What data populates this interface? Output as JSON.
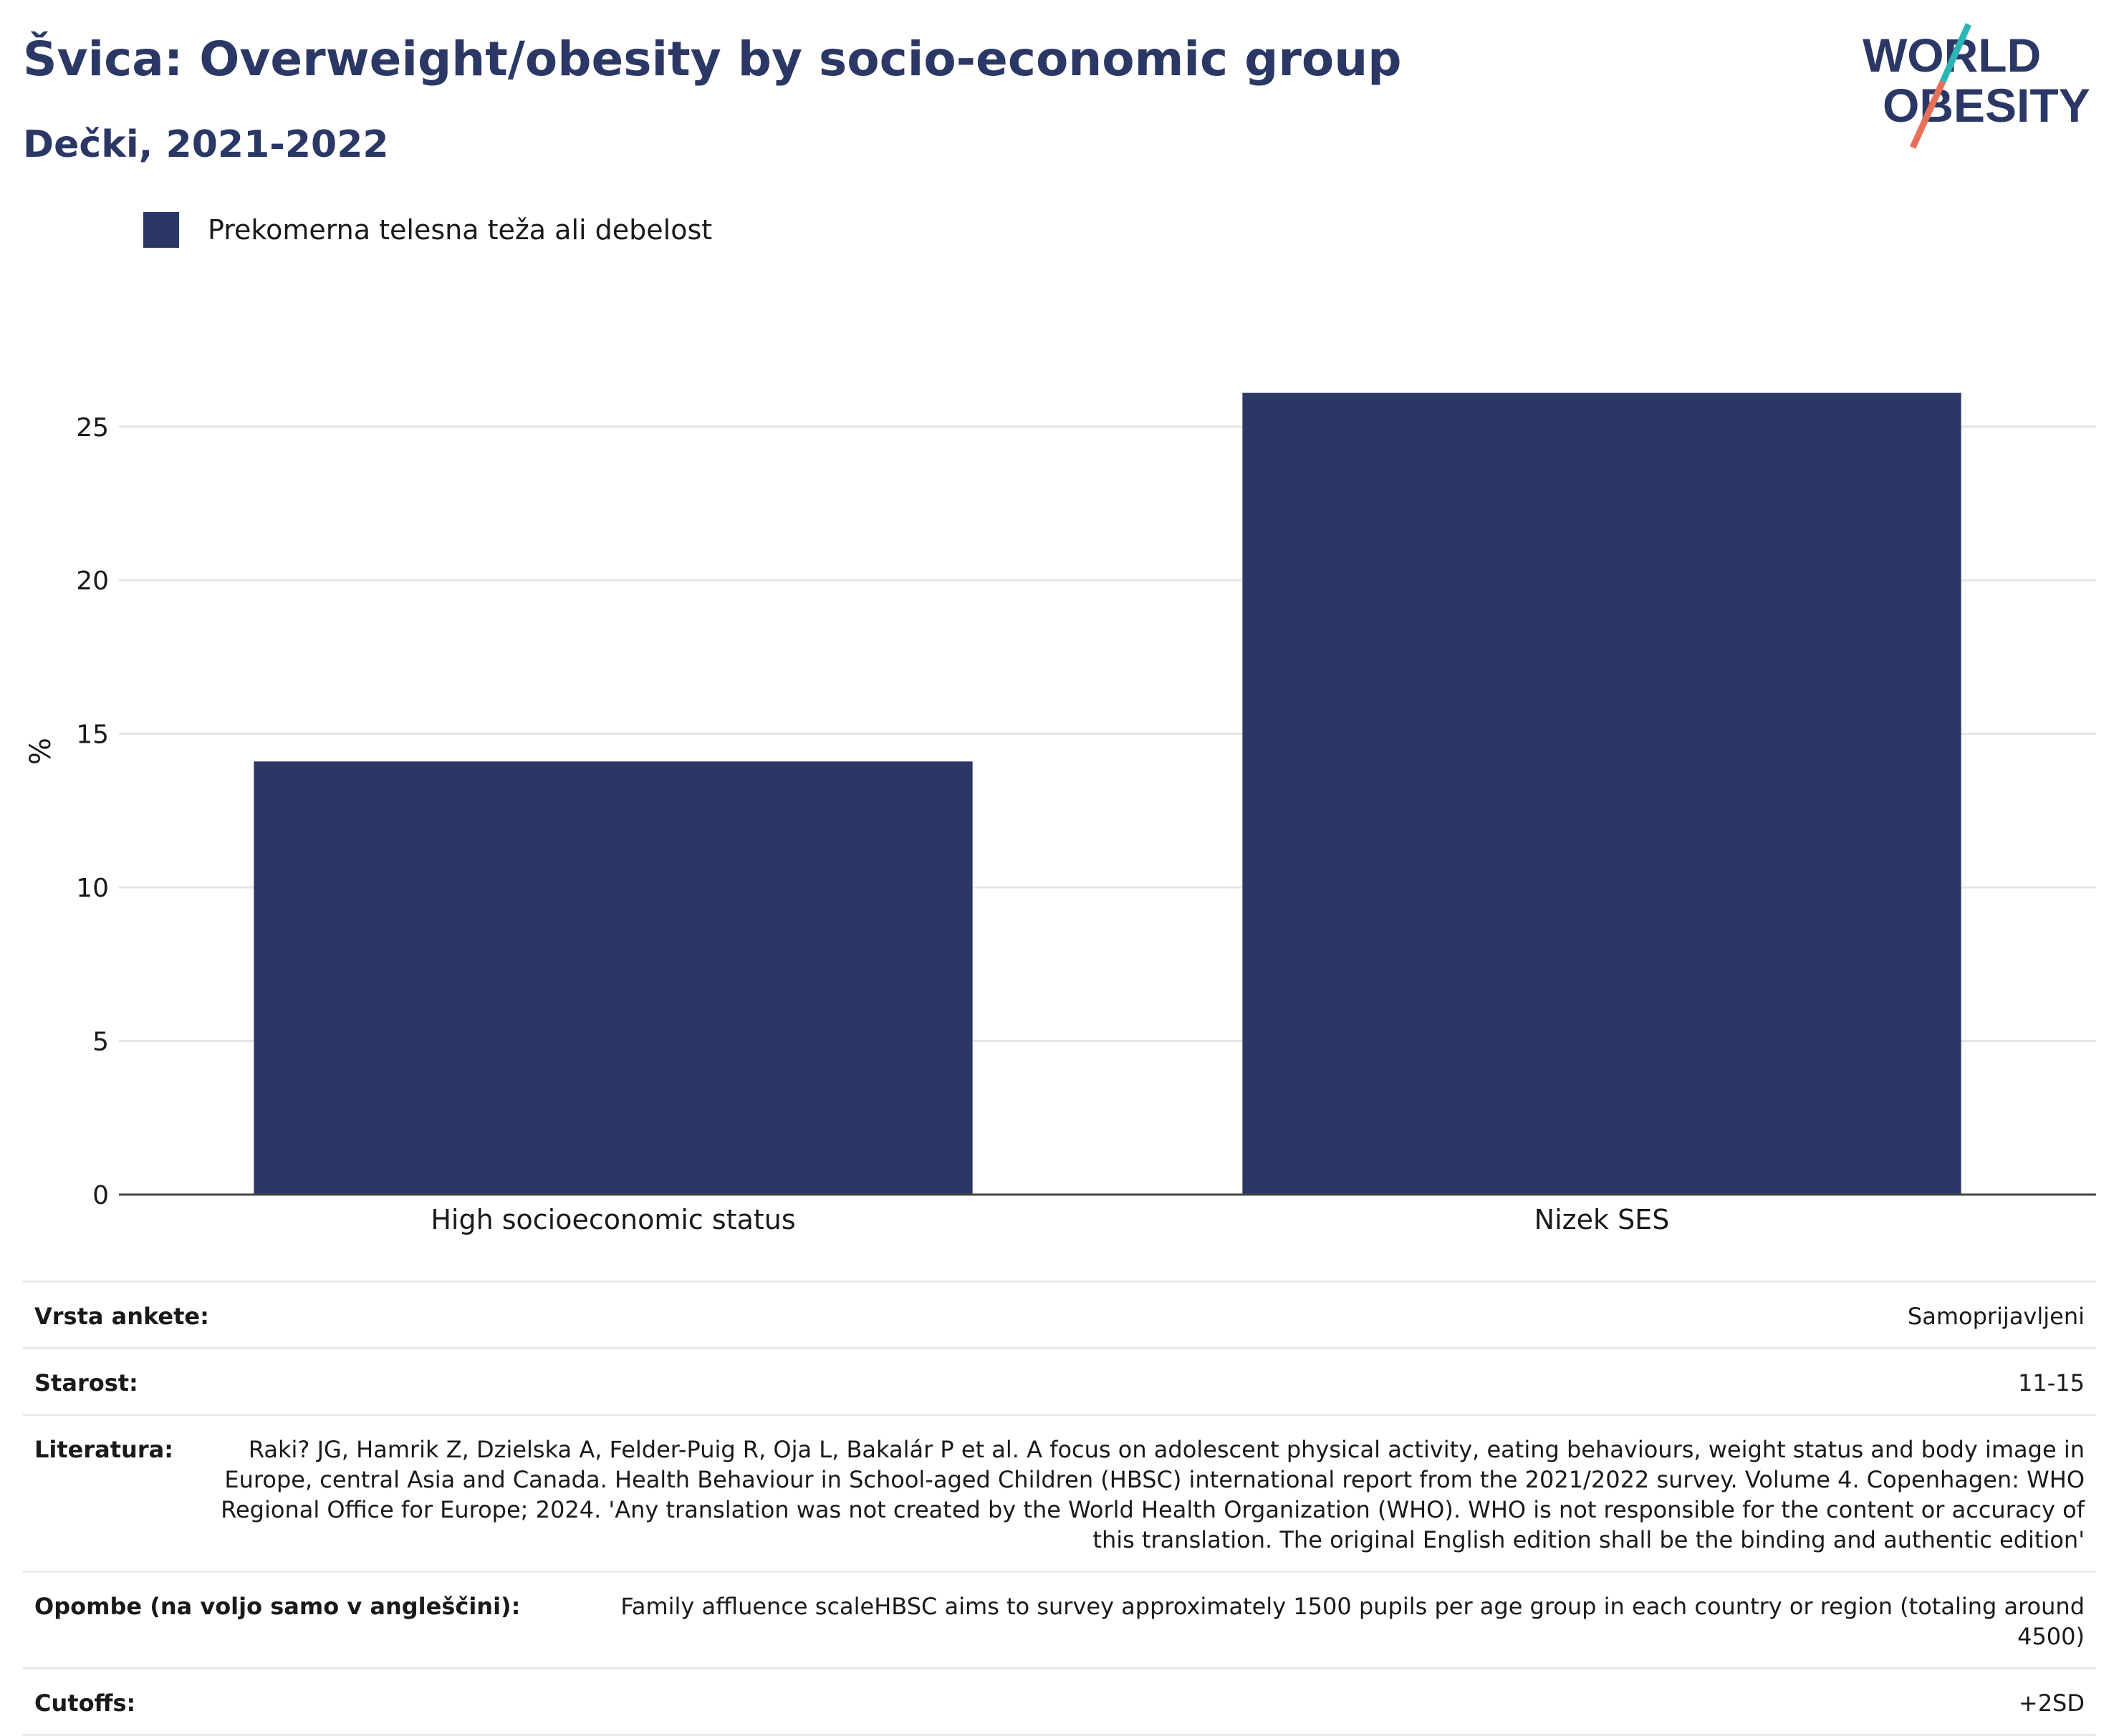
{
  "header": {
    "title": "Švica: Overweight/obesity by socio-economic group",
    "subtitle": "Dečki, 2021-2022"
  },
  "logo": {
    "line1": "WORLD",
    "line2": "OBESITY"
  },
  "colors": {
    "bar": "#2b3765",
    "title": "#2b3765",
    "logo_teal": "#2bb5b5",
    "logo_coral": "#e8705a"
  },
  "chart_data": {
    "type": "bar",
    "categories": [
      "High socioeconomic status",
      "Nizek SES"
    ],
    "series": [
      {
        "name": "Prekomerna telesna teža ali debelost",
        "values": [
          14.1,
          26.1
        ]
      }
    ],
    "ylabel": "%",
    "ylim": [
      0,
      27
    ],
    "yticks": [
      0,
      5,
      10,
      15,
      20,
      25
    ],
    "grid": true,
    "legend_position": "top-left"
  },
  "info": [
    {
      "label": "Vrsta ankete:",
      "value": "Samoprijavljeni"
    },
    {
      "label": "Starost:",
      "value": "11-15"
    },
    {
      "label": "Literatura:",
      "value": "Raki? JG, Hamrik Z, Dzielska A, Felder-Puig R, Oja L, Bakalár P et al. A focus on adolescent physical activity, eating behaviours, weight status and body image in Europe, central Asia and Canada. Health Behaviour in School-aged Children (HBSC) international report from the 2021/2022 survey. Volume 4. Copenhagen: WHO Regional Office for Europe; 2024. 'Any translation was not created by the World Health Organization (WHO). WHO is not responsible for the content or accuracy of this translation. The original English edition shall be the binding and authentic edition'"
    },
    {
      "label": "Opombe (na voljo samo v angleščini):",
      "value": "Family affluence scaleHBSC aims to survey approximately 1500 pupils per age group in each country or region (totaling around 4500)"
    },
    {
      "label": "Cutoffs:",
      "value": "+2SD"
    }
  ]
}
